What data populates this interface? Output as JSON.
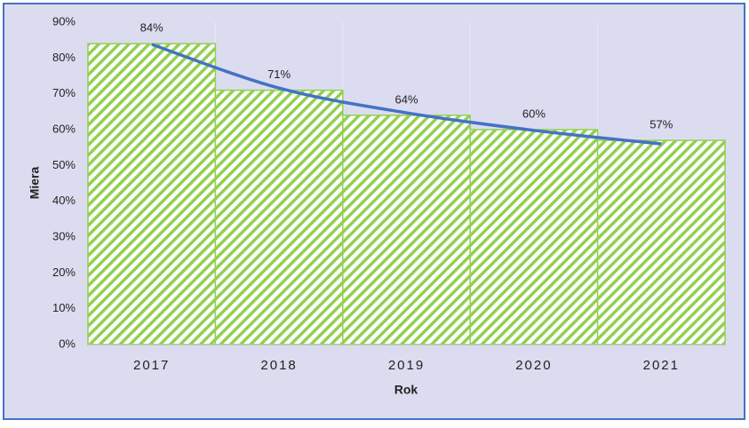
{
  "chart_data": {
    "type": "bar",
    "categories": [
      "2017",
      "2018",
      "2019",
      "2020",
      "2021"
    ],
    "values": [
      84,
      71,
      64,
      60,
      57
    ],
    "value_labels": [
      "84%",
      "71%",
      "64%",
      "60%",
      "57%"
    ],
    "color": "#92d050",
    "trend": {
      "color": "#4472c4",
      "values": [
        83.8,
        71.6,
        64.7,
        59.8,
        56.0
      ]
    },
    "x_label": "Rok",
    "y_label": "Miera",
    "ylim": [
      0,
      90
    ],
    "yticks": [
      {
        "value": 0,
        "label": "0%"
      },
      {
        "value": 10,
        "label": "10%"
      },
      {
        "value": 20,
        "label": "20%"
      },
      {
        "value": 30,
        "label": "30%"
      },
      {
        "value": 40,
        "label": "40%"
      },
      {
        "value": 50,
        "label": "50%"
      },
      {
        "value": 60,
        "label": "60%"
      },
      {
        "value": 70,
        "label": "70%"
      },
      {
        "value": 80,
        "label": "80%"
      },
      {
        "value": 90,
        "label": "90%"
      }
    ]
  }
}
